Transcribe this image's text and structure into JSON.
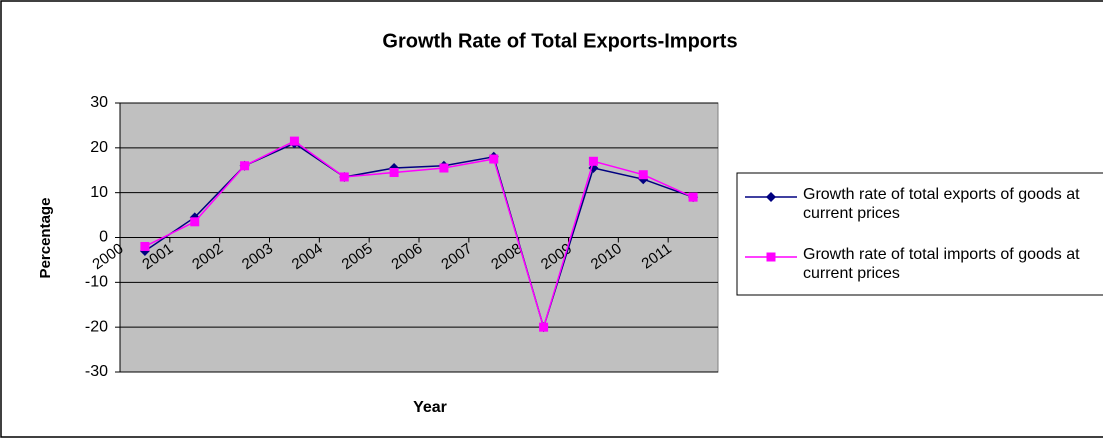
{
  "chart_data": {
    "type": "line",
    "title": "Growth Rate of Total Exports-Imports",
    "x_label": "Year",
    "y_label": "Percentage",
    "categories": [
      "2000",
      "2001",
      "2002",
      "2003",
      "2004",
      "2005",
      "2006",
      "2007",
      "2008",
      "2009",
      "2010",
      "2011"
    ],
    "series": [
      {
        "name": "Growth rate of total exports of goods at current prices",
        "color": "#000080",
        "marker": "diamond",
        "values": [
          -3,
          4.5,
          16,
          21,
          13.5,
          15.5,
          16,
          18,
          -20,
          15.5,
          13,
          9
        ]
      },
      {
        "name": "Growth rate of total imports of goods at current prices",
        "color": "#ff00ff",
        "marker": "square",
        "values": [
          -2,
          3.5,
          16,
          21.5,
          13.5,
          14.5,
          15.5,
          17.5,
          -20,
          17,
          14,
          9
        ]
      }
    ],
    "ylim": [
      -30,
      30
    ],
    "yticks": [
      -30,
      -20,
      -10,
      0,
      10,
      20,
      30
    ],
    "grid": true,
    "legend": "right"
  }
}
